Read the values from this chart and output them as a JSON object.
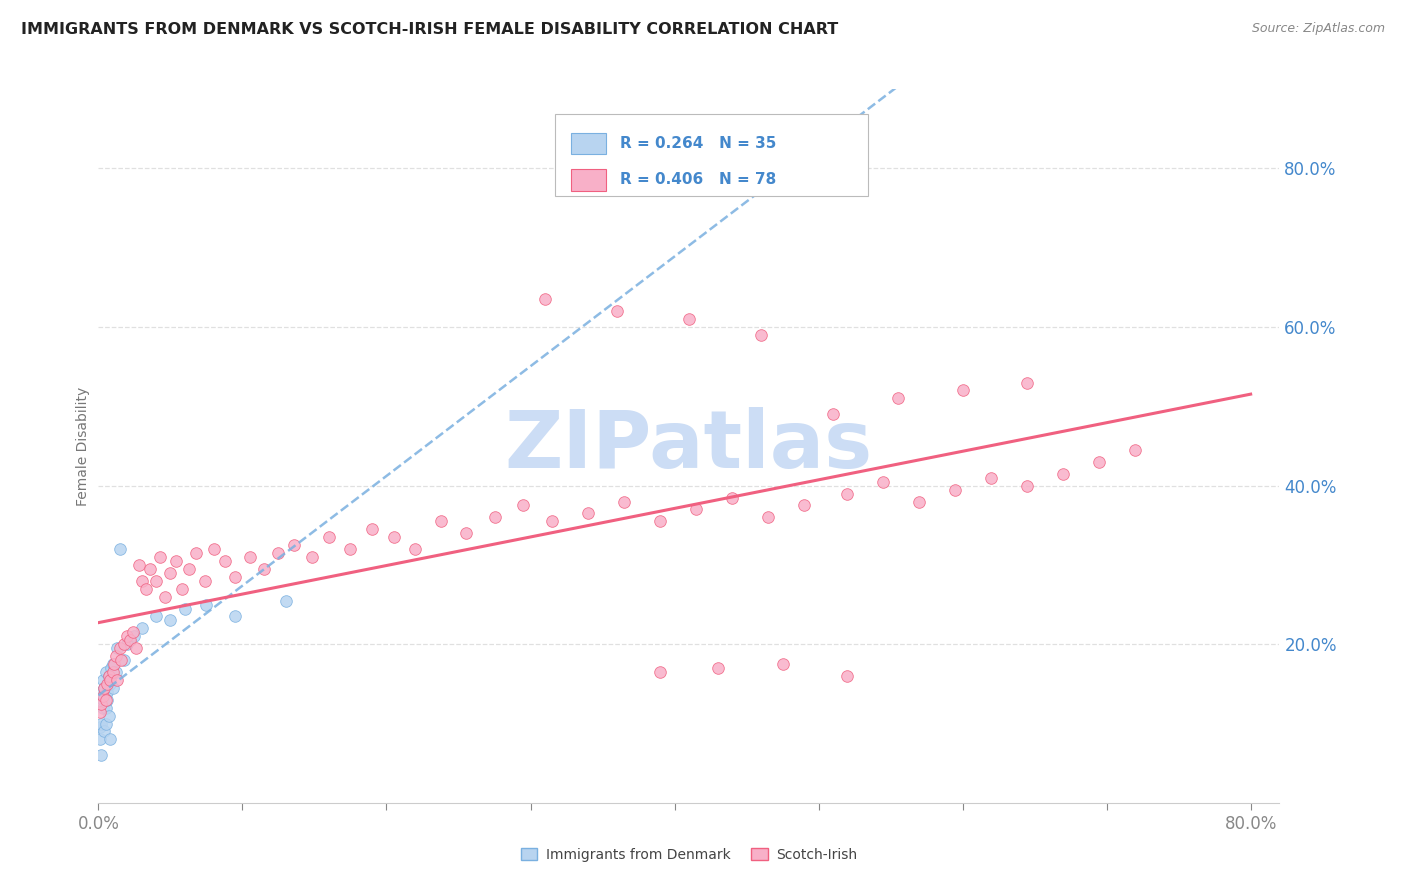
{
  "title": "IMMIGRANTS FROM DENMARK VS SCOTCH-IRISH FEMALE DISABILITY CORRELATION CHART",
  "source": "Source: ZipAtlas.com",
  "ylabel": "Female Disability",
  "xlim": [
    0.0,
    0.82
  ],
  "ylim": [
    0.0,
    0.9
  ],
  "ytick_vals": [
    0.2,
    0.4,
    0.6,
    0.8
  ],
  "ytick_labels": [
    "20.0%",
    "40.0%",
    "60.0%",
    "80.0%"
  ],
  "xtick_vals": [
    0.0,
    0.1,
    0.2,
    0.3,
    0.4,
    0.5,
    0.6,
    0.7,
    0.8
  ],
  "xtick_labels_show": [
    "0.0%",
    "",
    "",
    "",
    "",
    "",
    "",
    "",
    "80.0%"
  ],
  "legend1_label": "R = 0.264   N = 35",
  "legend2_label": "R = 0.406   N = 78",
  "series1_color": "#b8d4f0",
  "series2_color": "#f8b0c8",
  "line1_color": "#7ab0e0",
  "line2_color": "#f06080",
  "grid_color": "#e0e0e0",
  "axis_color": "#4488cc",
  "tick_color": "#888888",
  "watermark_color": "#ccddf5",
  "watermark": "ZIPatlas",
  "title_color": "#222222",
  "source_color": "#888888",
  "denmark_x": [
    0.001,
    0.001,
    0.002,
    0.002,
    0.002,
    0.003,
    0.003,
    0.003,
    0.004,
    0.004,
    0.005,
    0.005,
    0.005,
    0.006,
    0.006,
    0.007,
    0.007,
    0.008,
    0.008,
    0.009,
    0.01,
    0.01,
    0.012,
    0.013,
    0.015,
    0.018,
    0.02,
    0.025,
    0.03,
    0.04,
    0.05,
    0.06,
    0.075,
    0.095,
    0.13
  ],
  "denmark_y": [
    0.095,
    0.08,
    0.14,
    0.1,
    0.06,
    0.13,
    0.12,
    0.155,
    0.09,
    0.145,
    0.12,
    0.1,
    0.165,
    0.14,
    0.13,
    0.16,
    0.11,
    0.15,
    0.08,
    0.17,
    0.145,
    0.175,
    0.165,
    0.195,
    0.32,
    0.18,
    0.2,
    0.21,
    0.22,
    0.235,
    0.23,
    0.245,
    0.25,
    0.235,
    0.255
  ],
  "scotch_x": [
    0.001,
    0.002,
    0.003,
    0.004,
    0.005,
    0.006,
    0.007,
    0.008,
    0.01,
    0.011,
    0.012,
    0.013,
    0.015,
    0.016,
    0.018,
    0.02,
    0.022,
    0.024,
    0.026,
    0.028,
    0.03,
    0.033,
    0.036,
    0.04,
    0.043,
    0.046,
    0.05,
    0.054,
    0.058,
    0.063,
    0.068,
    0.074,
    0.08,
    0.088,
    0.095,
    0.105,
    0.115,
    0.125,
    0.136,
    0.148,
    0.16,
    0.175,
    0.19,
    0.205,
    0.22,
    0.238,
    0.255,
    0.275,
    0.295,
    0.315,
    0.34,
    0.365,
    0.39,
    0.415,
    0.44,
    0.465,
    0.49,
    0.52,
    0.545,
    0.57,
    0.595,
    0.62,
    0.645,
    0.67,
    0.695,
    0.72,
    0.31,
    0.36,
    0.41,
    0.46,
    0.51,
    0.555,
    0.6,
    0.645,
    0.39,
    0.43,
    0.475,
    0.52
  ],
  "scotch_y": [
    0.115,
    0.125,
    0.135,
    0.145,
    0.13,
    0.15,
    0.16,
    0.155,
    0.165,
    0.175,
    0.185,
    0.155,
    0.195,
    0.18,
    0.2,
    0.21,
    0.205,
    0.215,
    0.195,
    0.3,
    0.28,
    0.27,
    0.295,
    0.28,
    0.31,
    0.26,
    0.29,
    0.305,
    0.27,
    0.295,
    0.315,
    0.28,
    0.32,
    0.305,
    0.285,
    0.31,
    0.295,
    0.315,
    0.325,
    0.31,
    0.335,
    0.32,
    0.345,
    0.335,
    0.32,
    0.355,
    0.34,
    0.36,
    0.375,
    0.355,
    0.365,
    0.38,
    0.355,
    0.37,
    0.385,
    0.36,
    0.375,
    0.39,
    0.405,
    0.38,
    0.395,
    0.41,
    0.4,
    0.415,
    0.43,
    0.445,
    0.635,
    0.62,
    0.61,
    0.59,
    0.49,
    0.51,
    0.52,
    0.53,
    0.165,
    0.17,
    0.175,
    0.16
  ]
}
